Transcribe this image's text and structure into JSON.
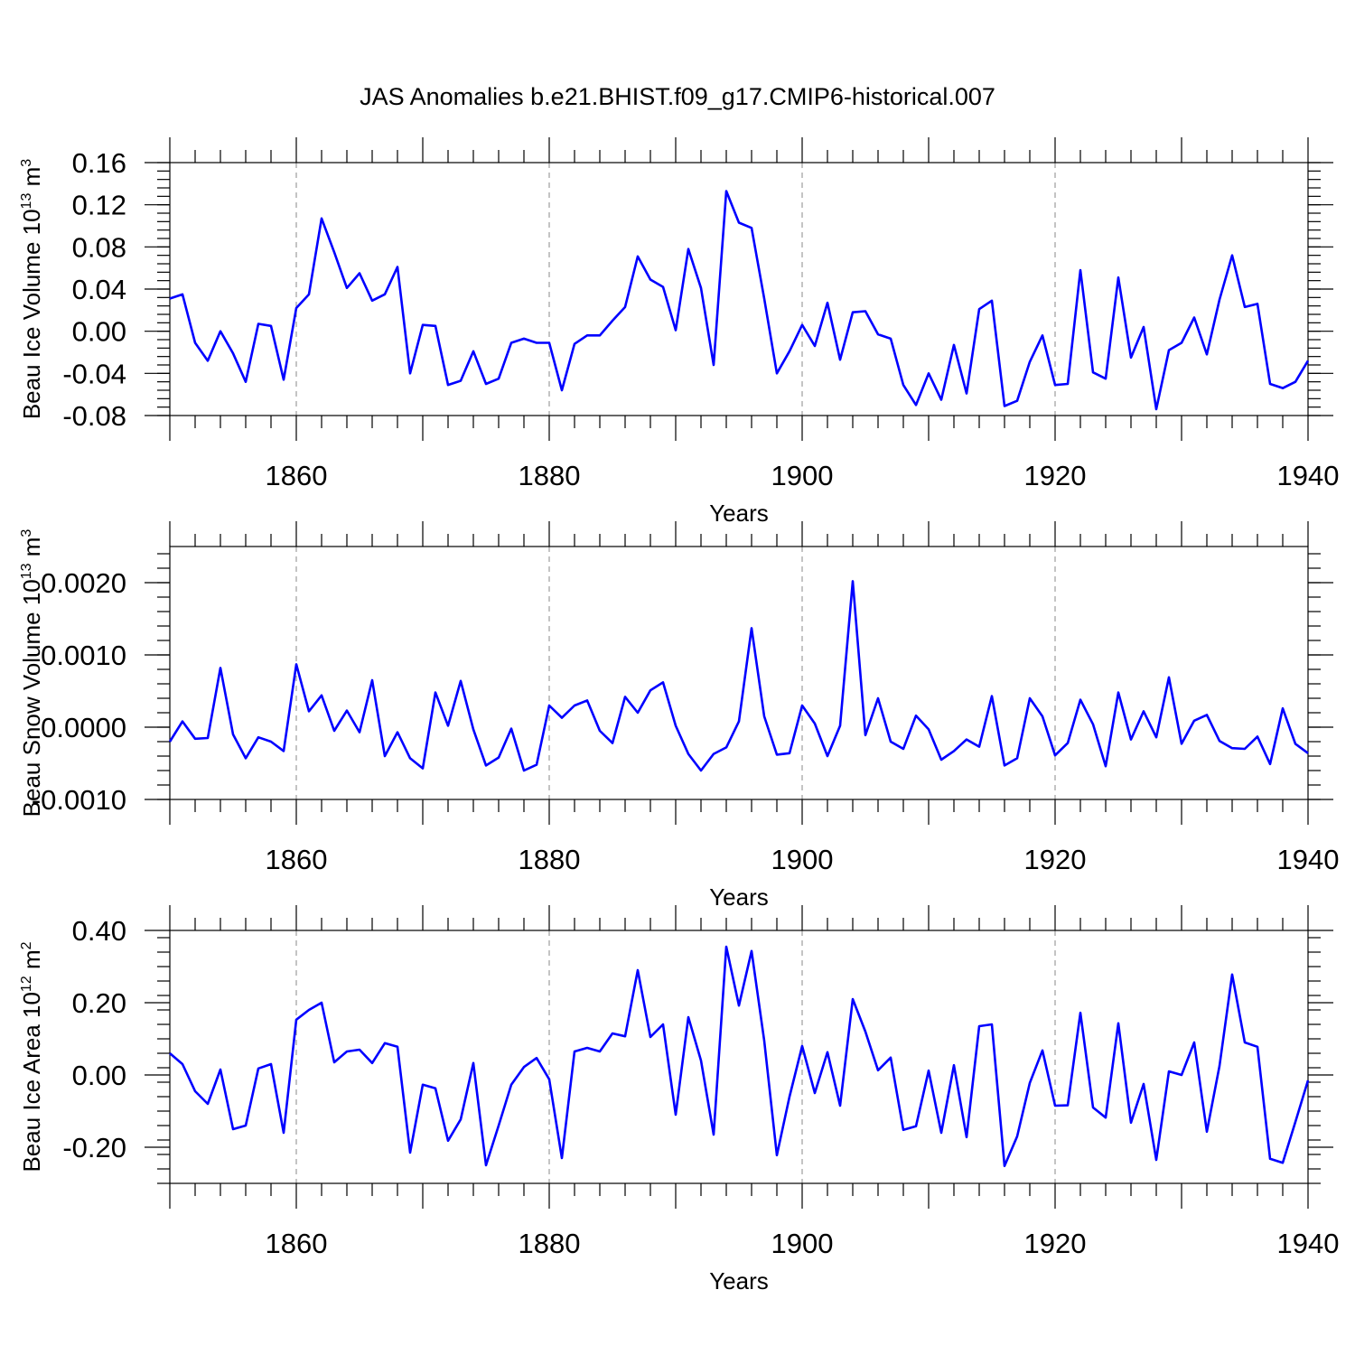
{
  "title": "JAS Anomalies b.e21.BHIST.f09_g17.CMIP6-historical.007",
  "colors": {
    "series": "#0000ff",
    "axis": "#000000",
    "grid": "#888888"
  },
  "chart_data": [
    {
      "type": "line",
      "title": "JAS Anomalies b.e21.BHIST.f09_g17.CMIP6-historical.007",
      "xlabel": "Years",
      "ylabel_main": "Beau Ice Volume 10",
      "ylabel_sup": "13",
      "ylabel_unit": " m",
      "ylabel_unit_sup": "3",
      "xlim": [
        1850,
        1940
      ],
      "ylim": [
        -0.08,
        0.16
      ],
      "yticks": [
        -0.08,
        -0.04,
        0.0,
        0.04,
        0.08,
        0.12,
        0.16
      ],
      "ytick_labels": [
        "-0.08",
        "-0.04",
        "0.00",
        "0.04",
        "0.08",
        "0.12",
        "0.16"
      ],
      "yminor_step": 0.008,
      "xticks": [
        1860,
        1880,
        1900,
        1920,
        1940
      ],
      "xtick_labels": [
        "1860",
        "1880",
        "1900",
        "1920",
        "1940"
      ],
      "x_start": 1850,
      "values": [
        0.031,
        0.035,
        -0.011,
        -0.028,
        0.0,
        -0.021,
        -0.048,
        0.007,
        0.005,
        -0.046,
        0.022,
        0.035,
        0.107,
        0.075,
        0.041,
        0.055,
        0.029,
        0.035,
        0.061,
        -0.04,
        0.006,
        0.005,
        -0.051,
        -0.047,
        -0.019,
        -0.05,
        -0.045,
        -0.011,
        -0.007,
        -0.011,
        -0.011,
        -0.056,
        -0.012,
        -0.004,
        -0.004,
        0.01,
        0.023,
        0.071,
        0.049,
        0.042,
        0.001,
        0.078,
        0.041,
        -0.032,
        0.133,
        0.103,
        0.098,
        0.031,
        -0.04,
        -0.019,
        0.006,
        -0.014,
        0.027,
        -0.027,
        0.018,
        0.019,
        -0.003,
        -0.007,
        -0.051,
        -0.07,
        -0.04,
        -0.065,
        -0.013,
        -0.059,
        0.021,
        0.029,
        -0.071,
        -0.066,
        -0.029,
        -0.004,
        -0.051,
        -0.05,
        0.058,
        -0.039,
        -0.045,
        0.051,
        -0.025,
        0.004,
        -0.074,
        -0.018,
        -0.011,
        0.013,
        -0.022,
        0.03,
        0.072,
        0.023,
        0.026,
        -0.05,
        -0.054,
        -0.048,
        -0.028
      ]
    },
    {
      "type": "line",
      "xlabel": "Years",
      "ylabel_main": "Beau Snow Volume 10",
      "ylabel_sup": "13",
      "ylabel_unit": " m",
      "ylabel_unit_sup": "3",
      "xlim": [
        1850,
        1940
      ],
      "ylim": [
        -0.001,
        0.0025
      ],
      "yticks": [
        -0.001,
        0.0,
        0.001,
        0.002
      ],
      "ytick_labels": [
        "-0.0010",
        "0.0000",
        "0.0010",
        "0.0020"
      ],
      "yminor_step": 0.0002,
      "xticks": [
        1860,
        1880,
        1900,
        1920,
        1940
      ],
      "xtick_labels": [
        "1860",
        "1880",
        "1900",
        "1920",
        "1940"
      ],
      "x_start": 1850,
      "values": [
        -0.0002,
        8e-05,
        -0.00016,
        -0.00015,
        0.00082,
        -0.0001,
        -0.00043,
        -0.00014,
        -0.0002,
        -0.00033,
        0.00087,
        0.00022,
        0.00044,
        -5e-05,
        0.00023,
        -7e-05,
        0.00065,
        -0.0004,
        -7e-05,
        -0.00043,
        -0.00057,
        0.00048,
        2e-05,
        0.00064,
        -3e-05,
        -0.00053,
        -0.00042,
        -2e-05,
        -0.0006,
        -0.00052,
        0.0003,
        0.00013,
        0.0003,
        0.00037,
        -5e-05,
        -0.00022,
        0.00042,
        0.0002,
        0.00051,
        0.00062,
        2e-05,
        -0.00037,
        -0.0006,
        -0.00037,
        -0.00028,
        8e-05,
        0.00137,
        0.00015,
        -0.00038,
        -0.00036,
        0.0003,
        5e-05,
        -0.0004,
        2e-05,
        0.00202,
        -0.00011,
        0.0004,
        -0.0002,
        -0.0003,
        0.00016,
        -3e-05,
        -0.00045,
        -0.00033,
        -0.00017,
        -0.00027,
        0.00043,
        -0.00053,
        -0.00043,
        0.0004,
        0.00015,
        -0.00039,
        -0.00022,
        0.00038,
        4e-05,
        -0.00054,
        0.00048,
        -0.00017,
        0.00022,
        -0.00014,
        0.00069,
        -0.00023,
        9e-05,
        0.00017,
        -0.00019,
        -0.00029,
        -0.0003,
        -0.00013,
        -0.00051,
        0.00026,
        -0.00023,
        -0.00036
      ]
    },
    {
      "type": "line",
      "xlabel": "Years",
      "ylabel_main": "Beau Ice Area 10",
      "ylabel_sup": "12",
      "ylabel_unit": " m",
      "ylabel_unit_sup": "2",
      "xlim": [
        1850,
        1940
      ],
      "ylim": [
        -0.3,
        0.4
      ],
      "yticks": [
        -0.2,
        0.0,
        0.2,
        0.4
      ],
      "ytick_labels": [
        "-0.20",
        "0.00",
        "0.20",
        "0.40"
      ],
      "yminor_step": 0.04,
      "xticks": [
        1860,
        1880,
        1900,
        1920,
        1940
      ],
      "xtick_labels": [
        "1860",
        "1880",
        "1900",
        "1920",
        "1940"
      ],
      "x_start": 1850,
      "values": [
        0.06,
        0.03,
        -0.045,
        -0.08,
        0.015,
        -0.15,
        -0.14,
        0.018,
        0.03,
        -0.16,
        0.153,
        0.18,
        0.2,
        0.035,
        0.065,
        0.07,
        0.033,
        0.088,
        0.078,
        -0.215,
        -0.027,
        -0.037,
        -0.182,
        -0.123,
        0.033,
        -0.25,
        -0.14,
        -0.027,
        0.022,
        0.047,
        -0.012,
        -0.23,
        0.065,
        0.075,
        0.065,
        0.115,
        0.107,
        0.29,
        0.105,
        0.14,
        -0.11,
        0.16,
        0.04,
        -0.165,
        0.355,
        0.192,
        0.343,
        0.095,
        -0.222,
        -0.06,
        0.08,
        -0.05,
        0.063,
        -0.085,
        0.21,
        0.12,
        0.013,
        0.048,
        -0.152,
        -0.142,
        0.012,
        -0.16,
        0.027,
        -0.172,
        0.135,
        0.14,
        -0.252,
        -0.17,
        -0.022,
        0.068,
        -0.085,
        -0.084,
        0.172,
        -0.09,
        -0.118,
        0.143,
        -0.132,
        -0.025,
        -0.235,
        0.01,
        0.0,
        0.09,
        -0.157,
        0.025,
        0.278,
        0.09,
        0.078,
        -0.232,
        -0.243,
        -0.13,
        -0.015
      ]
    }
  ]
}
